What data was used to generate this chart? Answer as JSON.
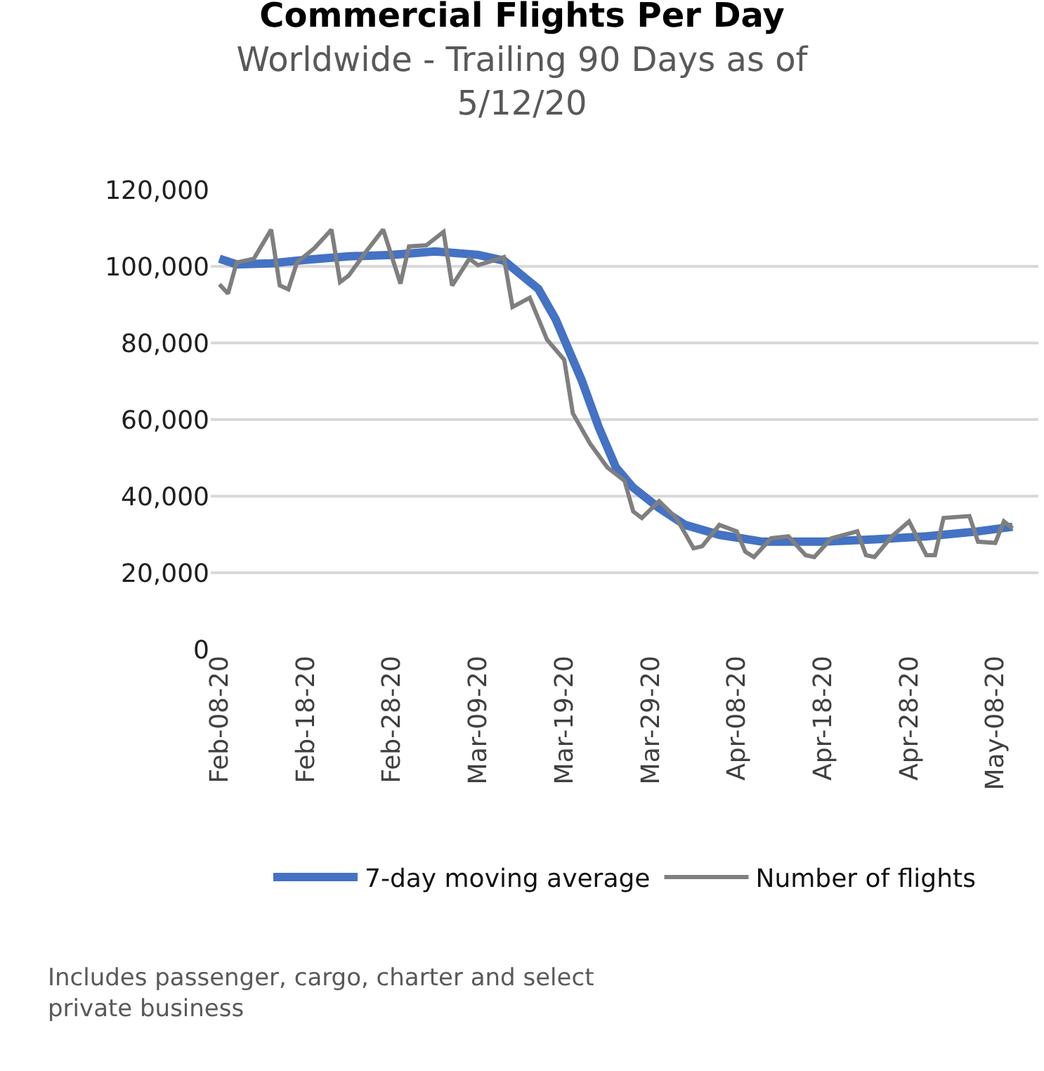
{
  "chart_data": {
    "type": "line",
    "title": "Commercial Flights Per Day",
    "subtitle": "Worldwide - Trailing 90 Days as of 5/12/20",
    "annotations": [
      "Includes passenger, cargo, charter and select private business"
    ],
    "series": [
      {
        "name": "7-day moving average",
        "color": "#4472c4",
        "x": [
          "--02-08",
          "--02-10",
          "--02-14",
          "--02-18",
          "--02-23",
          "--02-28",
          "--03-04",
          "--03-09",
          "--03-12",
          "--03-16",
          "--03-18",
          "--03-21",
          "--03-23",
          "--03-25",
          "--03-27",
          "--03-30",
          "--04-02",
          "--04-06",
          "--04-11",
          "--04-18",
          "--04-24",
          "--04-30",
          "--05-06",
          "--05-10"
        ],
        "values": [
          102000,
          100500,
          100800,
          101700,
          102600,
          103000,
          103900,
          103000,
          101500,
          94100,
          86200,
          70400,
          58000,
          47500,
          42200,
          36900,
          32500,
          29900,
          28100,
          28100,
          28700,
          29500,
          30800,
          32000
        ]
      },
      {
        "name": "Number of flights",
        "color": "#7f7f7f",
        "x": [
          "--02-08",
          "--02-09",
          "--02-10",
          "--02-12",
          "--02-14",
          "--02-15",
          "--02-16",
          "--02-17",
          "--02-19",
          "--02-21",
          "--02-22",
          "--02-23",
          "--02-25",
          "--02-27",
          "--02-29",
          "--03-01",
          "--03-03",
          "--03-05",
          "--03-06",
          "--03-08",
          "--03-09",
          "--03-12",
          "--03-13",
          "--03-15",
          "--03-17",
          "--03-19",
          "--03-20",
          "--03-22",
          "--03-24",
          "--03-26",
          "--03-27",
          "--03-28",
          "--03-30",
          "--04-01",
          "--04-03",
          "--04-04",
          "--04-06",
          "--04-08",
          "--04-09",
          "--04-10",
          "--04-12",
          "--04-14",
          "--04-16",
          "--04-17",
          "--04-19",
          "--04-22",
          "--04-23",
          "--04-24",
          "--04-26",
          "--04-28",
          "--04-30",
          "--05-01",
          "--05-02",
          "--05-05",
          "--05-06",
          "--05-08",
          "--05-09",
          "--05-10"
        ],
        "values": [
          95300,
          92900,
          101000,
          102000,
          109600,
          95000,
          94000,
          101000,
          104700,
          109600,
          95900,
          97600,
          103800,
          109600,
          95500,
          105200,
          105500,
          109000,
          95000,
          102000,
          100300,
          102400,
          89400,
          91800,
          80900,
          75600,
          61600,
          53700,
          47500,
          44000,
          36000,
          34300,
          38700,
          34300,
          26400,
          26900,
          32500,
          30800,
          25500,
          24100,
          29000,
          29500,
          24600,
          24100,
          29000,
          30800,
          24600,
          24100,
          29500,
          33400,
          24600,
          24600,
          34300,
          34800,
          28100,
          27800,
          33400,
          31600
        ]
      }
    ],
    "xlim": [
      "--02-07",
      "--05-13"
    ],
    "xticks": [
      {
        "value": "--02-08",
        "label": "Feb-08-20"
      },
      {
        "value": "--02-18",
        "label": "Feb-18-20"
      },
      {
        "value": "--02-28",
        "label": "Feb-28-20"
      },
      {
        "value": "--03-09",
        "label": "Mar-09-20"
      },
      {
        "value": "--03-19",
        "label": "Mar-19-20"
      },
      {
        "value": "--03-29",
        "label": "Mar-29-20"
      },
      {
        "value": "--04-08",
        "label": "Apr-08-20"
      },
      {
        "value": "--04-18",
        "label": "Apr-18-20"
      },
      {
        "value": "--04-28",
        "label": "Apr-28-20"
      },
      {
        "value": "--05-08",
        "label": "May-08-20"
      }
    ],
    "ylim": [
      0,
      120000
    ],
    "yticks": [
      0,
      {
        "value": 20000,
        "label": "20,000"
      },
      {
        "value": 40000,
        "label": "40,000"
      },
      {
        "value": 60000,
        "label": "60,000"
      },
      {
        "value": 80000,
        "label": "80,000"
      },
      {
        "value": 100000,
        "label": "100,000"
      },
      {
        "value": 120000,
        "label": "120,000"
      }
    ],
    "grid": "y",
    "legend": "bottom",
    "marker": "none",
    "line_style": "solid"
  }
}
